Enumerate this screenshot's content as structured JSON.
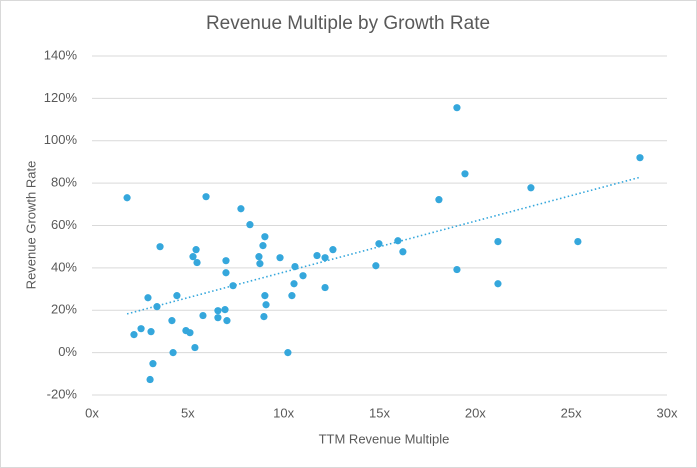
{
  "chart_data": {
    "type": "scatter",
    "title": "Revenue Multiple by Growth Rate",
    "x_label": "TTM Revenue Multiple",
    "y_label": "Revenue Growth Rate",
    "color": "#35a7dc",
    "trendline": true,
    "grid": true,
    "x": [
      1.83,
      2.19,
      2.56,
      2.92,
      3.08,
      3.03,
      3.18,
      3.39,
      3.55,
      4.17,
      4.23,
      4.43,
      4.9,
      5.11,
      5.27,
      5.43,
      5.48,
      5.37,
      5.79,
      5.95,
      6.57,
      6.57,
      6.94,
      7.04,
      6.99,
      6.99,
      7.36,
      7.77,
      8.24,
      8.71,
      8.76,
      8.92,
      9.02,
      9.02,
      9.08,
      8.97,
      9.81,
      10.22,
      10.43,
      10.54,
      10.59,
      11.01,
      11.74,
      12.16,
      12.16,
      12.57,
      14.81,
      14.97,
      15.96,
      16.22,
      18.1,
      19.04,
      19.04,
      19.46,
      21.18,
      21.18,
      22.9,
      25.35,
      28.59
    ],
    "values": [
      73.1,
      8.5,
      11.3,
      25.9,
      9.9,
      -12.7,
      -5.2,
      21.7,
      50.0,
      15.1,
      0,
      26.9,
      10.4,
      9.4,
      45.3,
      48.6,
      42.5,
      2.4,
      17.5,
      73.6,
      19.8,
      16.5,
      20.3,
      15.1,
      43.4,
      37.7,
      31.6,
      67.9,
      60.4,
      45.3,
      42.0,
      50.5,
      54.7,
      26.9,
      22.6,
      17.0,
      44.8,
      0,
      26.9,
      32.5,
      40.6,
      36.3,
      45.8,
      44.8,
      30.7,
      48.6,
      41.0,
      51.4,
      52.8,
      47.6,
      72.2,
      115.6,
      39.2,
      84.4,
      52.4,
      32.5,
      77.8,
      52.4,
      92.0
    ],
    "xlim": [
      0,
      30
    ],
    "xticks": [
      {
        "value": 0,
        "label": "0x"
      },
      {
        "value": 5,
        "label": "5x"
      },
      {
        "value": 10,
        "label": "10x"
      },
      {
        "value": 15,
        "label": "15x"
      },
      {
        "value": 20,
        "label": "20x"
      },
      {
        "value": 25,
        "label": "25x"
      },
      {
        "value": 30,
        "label": "30x"
      }
    ],
    "ylim": [
      -20,
      140
    ],
    "yticks": [
      {
        "value": -20,
        "label": "-20%"
      },
      {
        "value": 0,
        "label": "0%"
      },
      {
        "value": 20,
        "label": "20%"
      },
      {
        "value": 40,
        "label": "40%"
      },
      {
        "value": 60,
        "label": "60%"
      },
      {
        "value": 80,
        "label": "80%"
      },
      {
        "value": 100,
        "label": "100%"
      },
      {
        "value": 120,
        "label": "120%"
      },
      {
        "value": 140,
        "label": "140%"
      }
    ]
  }
}
